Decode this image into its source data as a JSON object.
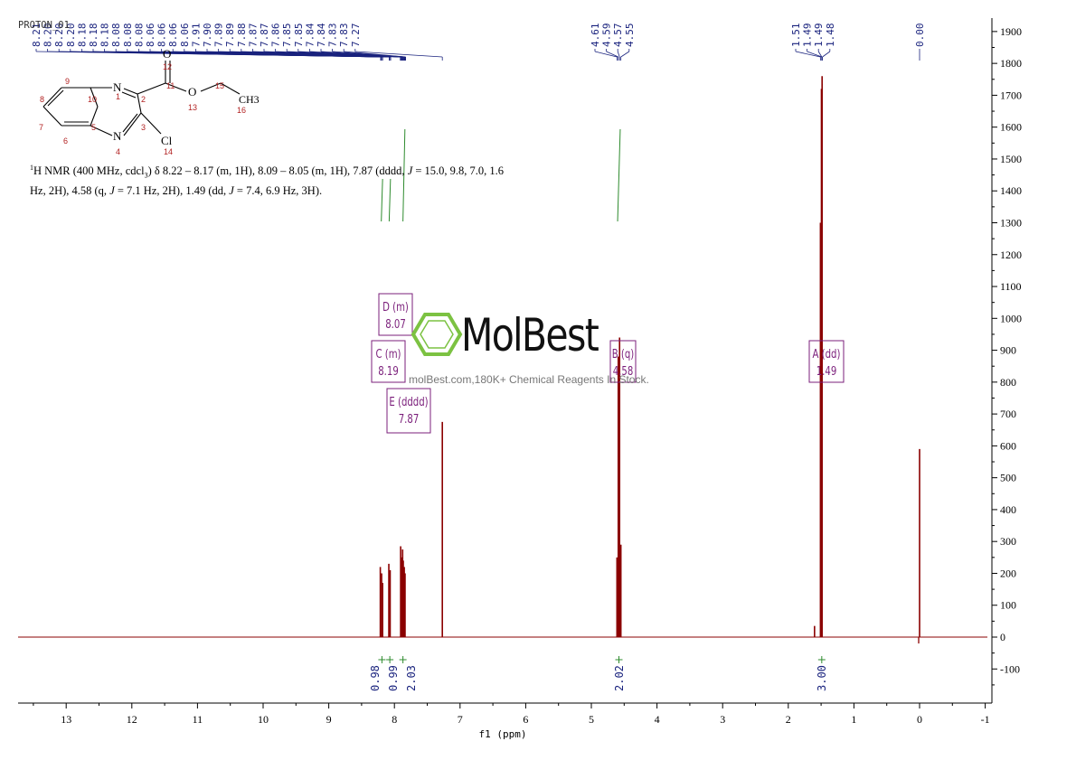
{
  "file_label": "PROTON_01",
  "nmr_description": {
    "line1": "H NMR (400 MHz, cdcl",
    "line1_sub": "3",
    "line1_rest": ") δ 8.22 – 8.17 (m, 1H), 8.09 – 8.05 (m, 1H), 7.87 (dddd, ",
    "j_symbol": "J",
    "line1_tail": " = 15.0, 9.8, 7.0, 1.6",
    "line2_a": "Hz, 2H), 4.58 (q, ",
    "line2_b": " = 7.1 Hz, 2H), 1.49 (dd, ",
    "line2_c": " = 7.4, 6.9 Hz, 3H).",
    "superscript": "1"
  },
  "structure": {
    "atoms": [
      "N",
      "N",
      "O",
      "O",
      "Cl",
      "CH3"
    ],
    "numbers": [
      "1",
      "2",
      "3",
      "4",
      "5",
      "6",
      "7",
      "8",
      "9",
      "10",
      "11",
      "12",
      "13",
      "14",
      "15",
      "16"
    ]
  },
  "watermark": {
    "brand": "MolBest",
    "tagline": "molBest.com,180K+ Chemical Reagents In Stock."
  },
  "colors": {
    "spectrum": "#8b0000",
    "peak_labels": "#1a237e",
    "integral": "#2e8b2e",
    "multiplet_box": "#7b1f7b",
    "logo_green": "#7cc242"
  },
  "chart_data": {
    "type": "line",
    "title": "",
    "xlabel": "f1 (ppm)",
    "ylabel": "",
    "xlim": [
      13.8,
      -1.0
    ],
    "ylim": [
      -200,
      1900
    ],
    "x_ticks": [
      13,
      12,
      11,
      10,
      9,
      8,
      7,
      6,
      5,
      4,
      3,
      2,
      1,
      0,
      -1
    ],
    "y_ticks": [
      1900,
      1800,
      1700,
      1600,
      1500,
      1400,
      1300,
      1200,
      1100,
      1000,
      900,
      800,
      700,
      600,
      500,
      400,
      300,
      200,
      100,
      0,
      -100
    ],
    "peak_list": [
      "8.21",
      "8.20",
      "8.20",
      "8.20",
      "8.18",
      "8.18",
      "8.18",
      "8.08",
      "8.08",
      "8.08",
      "8.06",
      "8.06",
      "8.06",
      "8.06",
      "7.91",
      "7.90",
      "7.89",
      "7.89",
      "7.88",
      "7.87",
      "7.87",
      "7.86",
      "7.85",
      "7.85",
      "7.84",
      "7.84",
      "7.83",
      "7.83",
      "7.27",
      "4.61",
      "4.59",
      "4.57",
      "4.55",
      "1.51",
      "1.49",
      "1.49",
      "1.48",
      "0.00"
    ],
    "peaks": [
      {
        "ppm": 8.215,
        "height": 220
      },
      {
        "ppm": 8.195,
        "height": 200
      },
      {
        "ppm": 8.18,
        "height": 170
      },
      {
        "ppm": 8.085,
        "height": 230
      },
      {
        "ppm": 8.065,
        "height": 210
      },
      {
        "ppm": 7.905,
        "height": 285
      },
      {
        "ppm": 7.89,
        "height": 250
      },
      {
        "ppm": 7.875,
        "height": 275
      },
      {
        "ppm": 7.865,
        "height": 240
      },
      {
        "ppm": 7.85,
        "height": 220
      },
      {
        "ppm": 7.838,
        "height": 200
      },
      {
        "ppm": 7.27,
        "height": 675
      },
      {
        "ppm": 4.61,
        "height": 250
      },
      {
        "ppm": 4.59,
        "height": 880
      },
      {
        "ppm": 4.57,
        "height": 940
      },
      {
        "ppm": 4.55,
        "height": 290
      },
      {
        "ppm": 1.51,
        "height": 1300
      },
      {
        "ppm": 1.495,
        "height": 1720
      },
      {
        "ppm": 1.485,
        "height": 1760
      },
      {
        "ppm": 1.6,
        "height": 35
      },
      {
        "ppm": 0.0,
        "height": 590
      }
    ],
    "multiplets": [
      {
        "letter": "D",
        "type": "(m)",
        "label": "D (m)",
        "shift": "8.07"
      },
      {
        "letter": "C",
        "type": "(m)",
        "label": "C (m)",
        "shift": "8.19"
      },
      {
        "letter": "E",
        "type": "(dddd)",
        "label": "E (dddd)",
        "shift": "7.87"
      },
      {
        "letter": "B",
        "type": "(q)",
        "label": "B (q)",
        "shift": "4.58"
      },
      {
        "letter": "A",
        "type": "(dd)",
        "label": "A (dd)",
        "shift": "1.49"
      }
    ],
    "integrals": [
      {
        "ppm": 8.19,
        "value": "0.98"
      },
      {
        "ppm": 8.07,
        "value": "0.99"
      },
      {
        "ppm": 7.87,
        "value": "2.03"
      },
      {
        "ppm": 4.58,
        "value": "2.02"
      },
      {
        "ppm": 1.49,
        "value": "3.00"
      }
    ],
    "grid": false
  }
}
